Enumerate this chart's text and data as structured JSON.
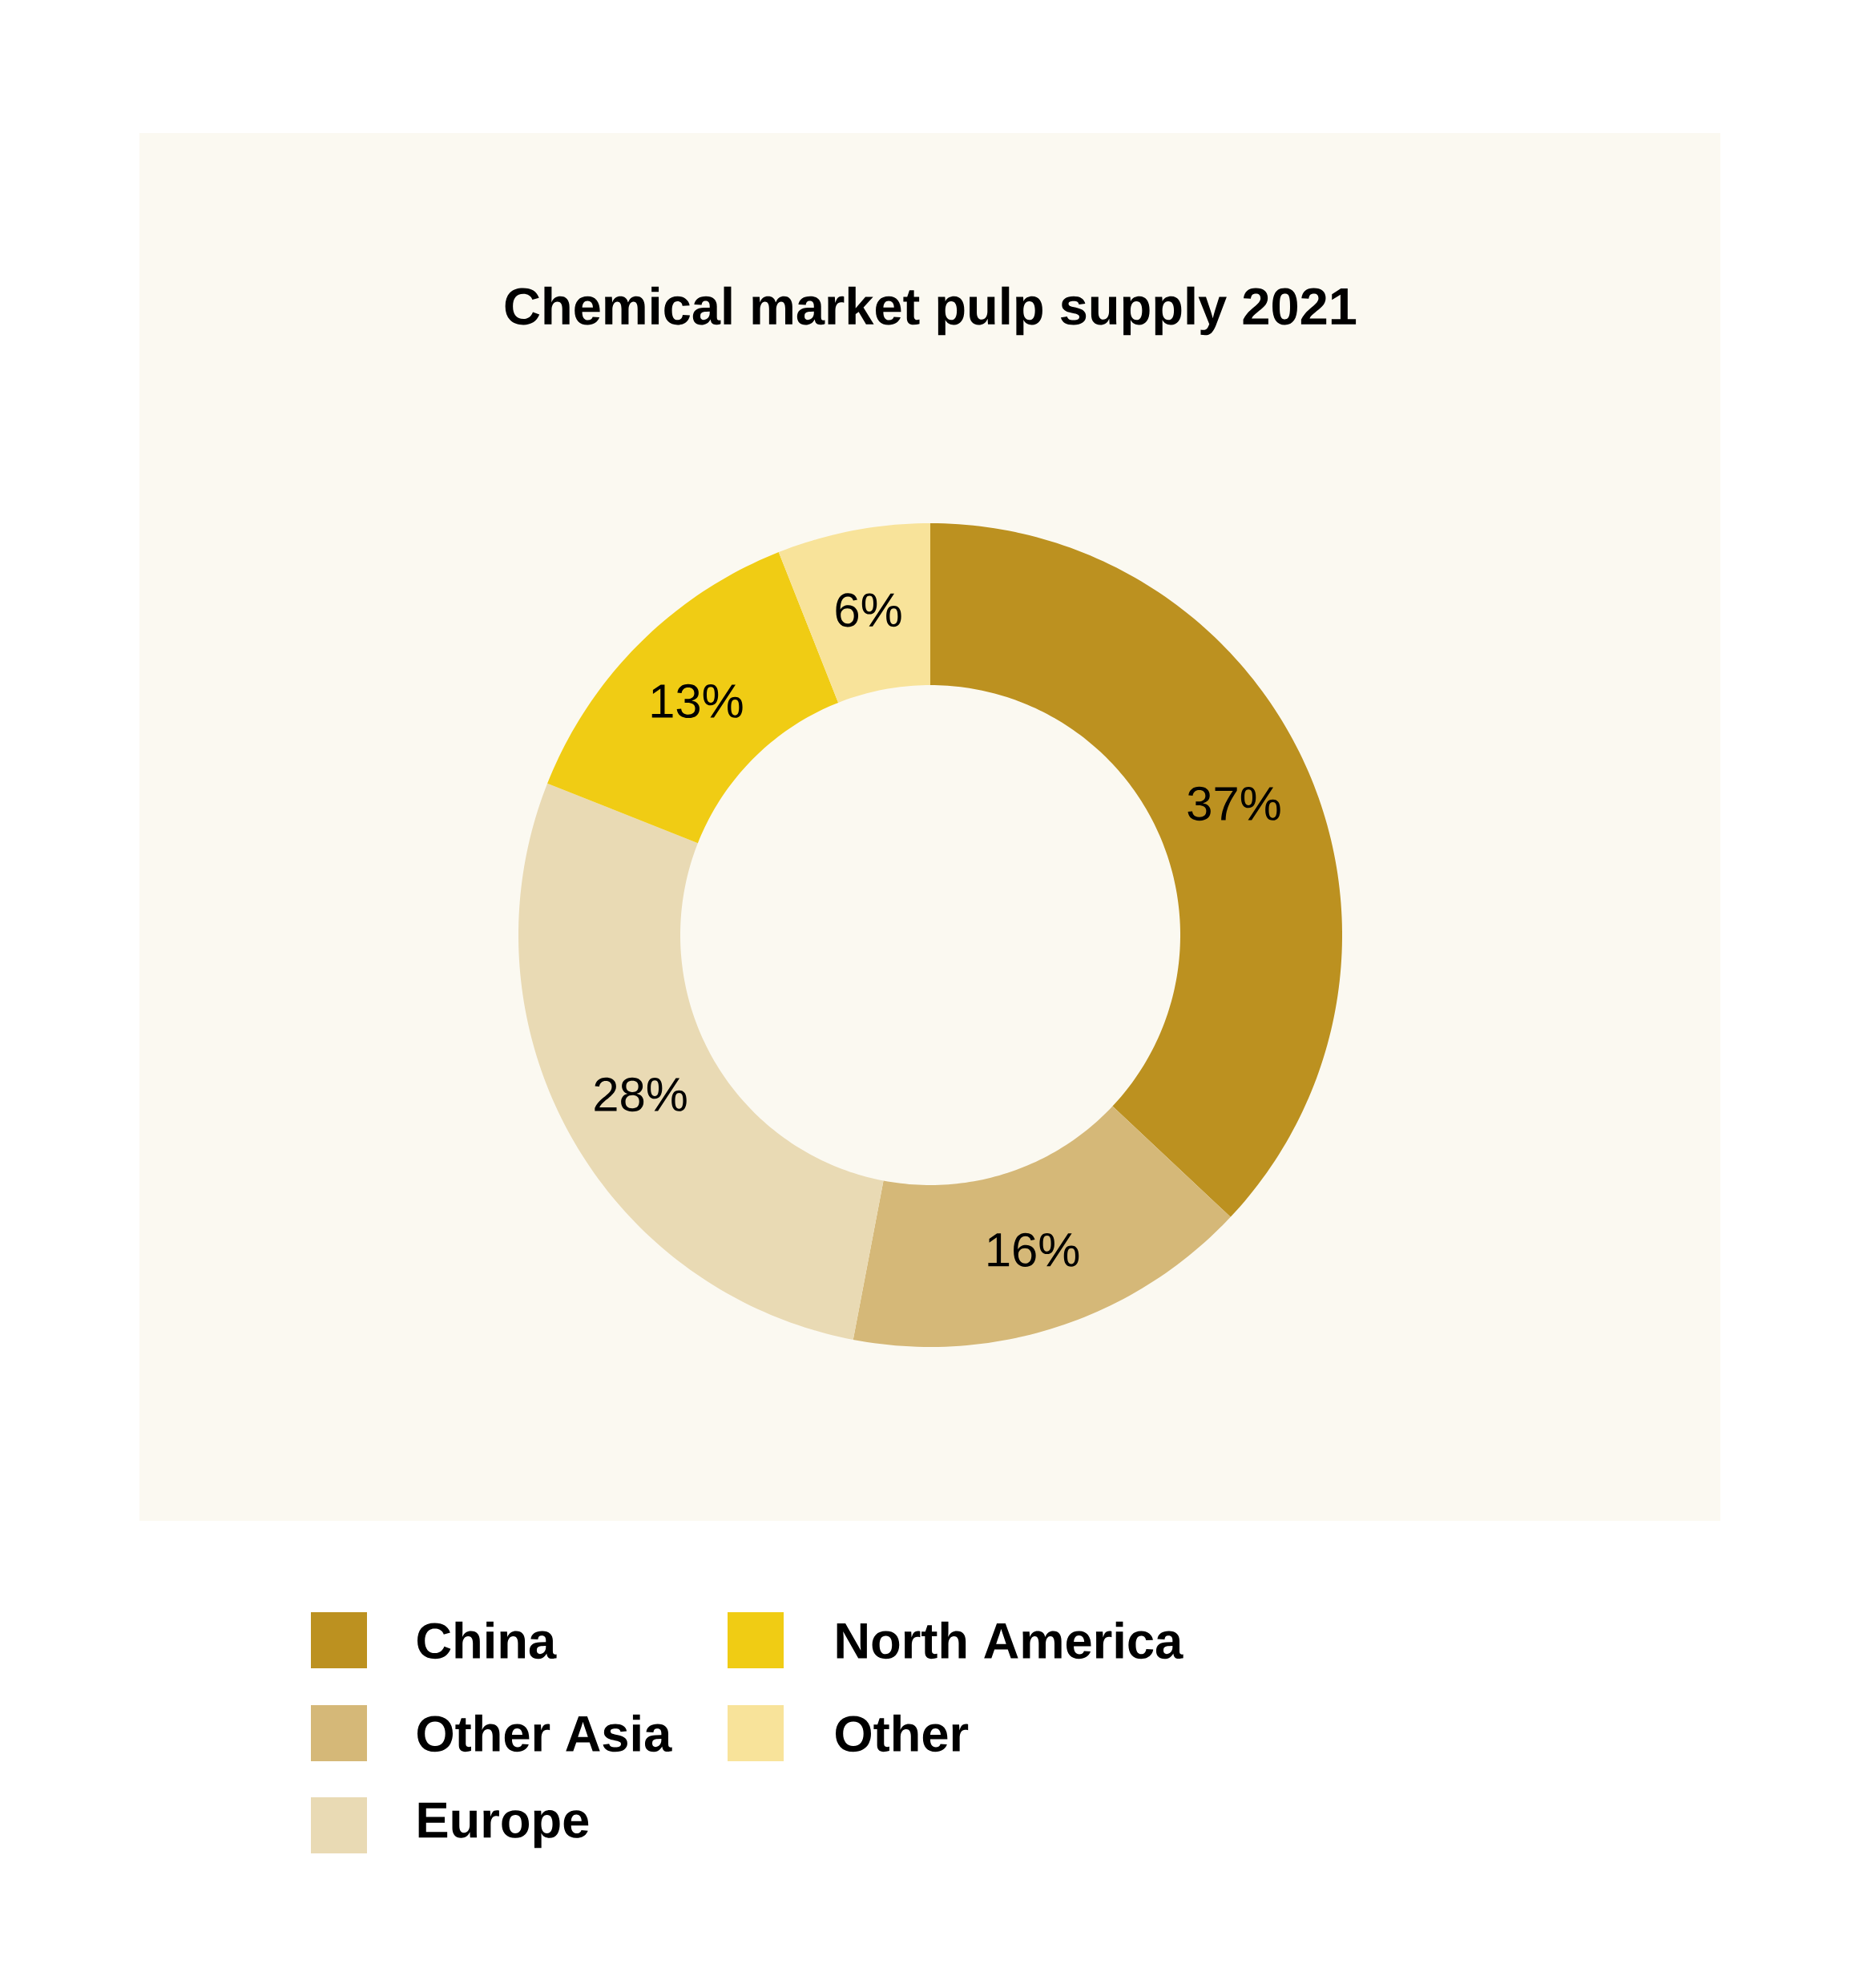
{
  "chart_data": {
    "type": "donut",
    "title": "Chemical market pulp supply 2021",
    "categories": [
      "China",
      "Other Asia",
      "Europe",
      "North America",
      "Other"
    ],
    "values": [
      37,
      16,
      28,
      13,
      6
    ],
    "colors": [
      "#bc9120",
      "#d5b878",
      "#e9dab4",
      "#f0cc14",
      "#f8e39a"
    ],
    "value_labels": [
      "37%",
      "16%",
      "28%",
      "13%",
      "6%"
    ],
    "legend": "bottom"
  }
}
